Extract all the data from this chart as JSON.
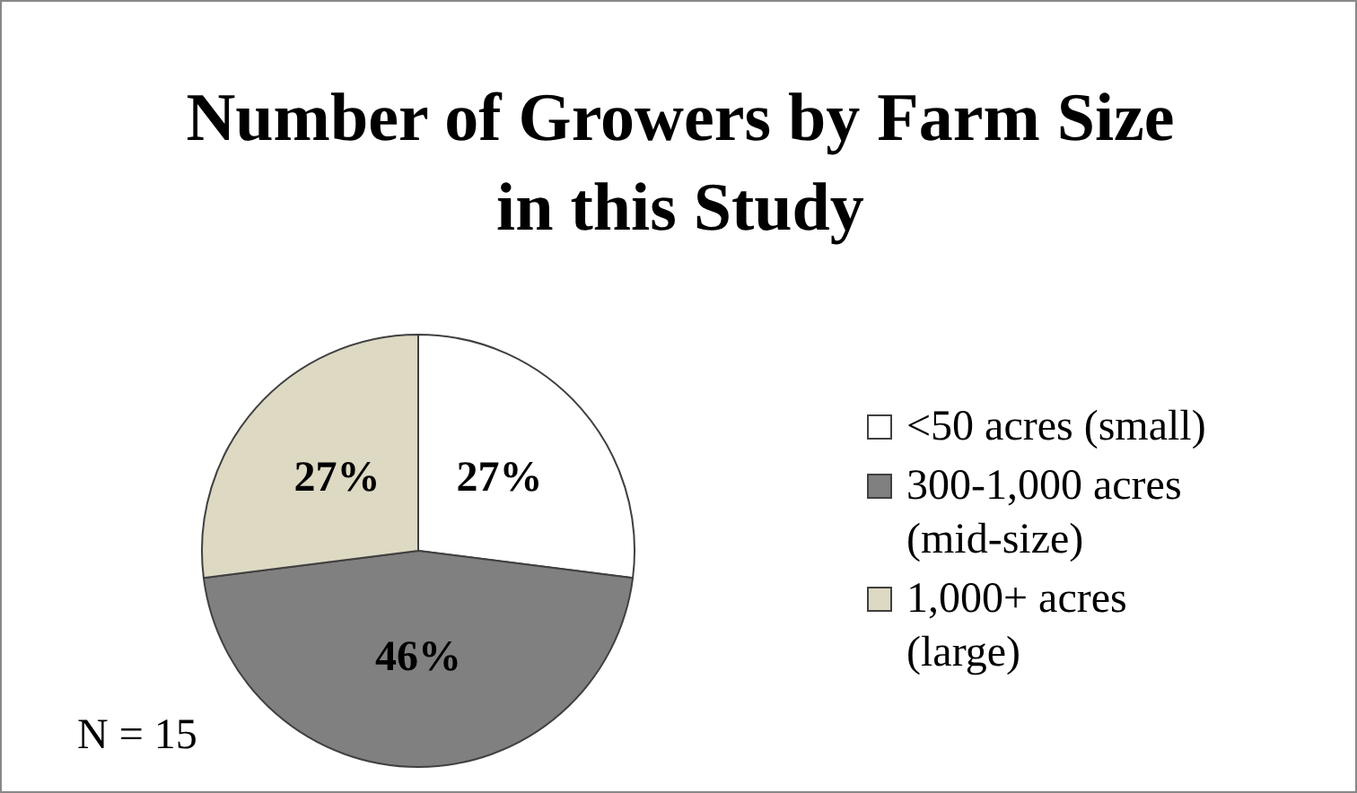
{
  "chart_data": {
    "type": "pie",
    "title": "Number of Growers by Farm Size in this Study",
    "categories": [
      "<50 acres (small)",
      "300-1,000 acres (mid-size)",
      "1,000+ acres (large)"
    ],
    "values": [
      27,
      46,
      27
    ],
    "colors": [
      "#ffffff",
      "#808080",
      "#ddd9c3"
    ],
    "value_labels": [
      "27%",
      "46%",
      "27%"
    ],
    "legend": "right",
    "annotations": [
      "N = 15"
    ]
  }
}
